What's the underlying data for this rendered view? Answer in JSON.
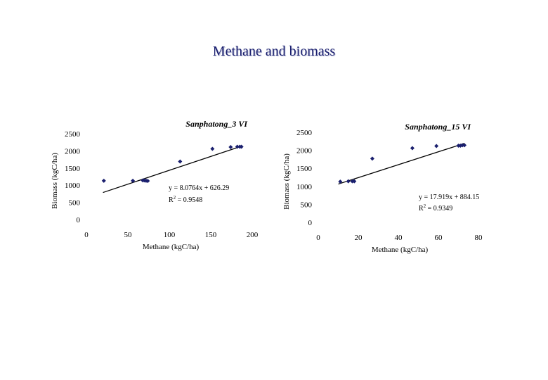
{
  "page": {
    "title": "Methane and biomass"
  },
  "colors": {
    "marker": "#1a1f6e",
    "text": "#000000",
    "title": "#1a1f6e"
  },
  "chart_data": [
    {
      "type": "scatter",
      "title": "Sanphatong_3 VI",
      "xlabel": "Methane (kgC/ha)",
      "ylabel": "Biomass (kgC/ha)",
      "xlim": [
        0,
        200
      ],
      "ylim": [
        0,
        2500
      ],
      "xticks": [
        0,
        50,
        100,
        150,
        200
      ],
      "yticks": [
        0,
        500,
        1000,
        1500,
        2000,
        2500
      ],
      "grid": false,
      "points": [
        {
          "x": 21,
          "y": 1130
        },
        {
          "x": 56,
          "y": 1130
        },
        {
          "x": 68,
          "y": 1140
        },
        {
          "x": 70,
          "y": 1140
        },
        {
          "x": 72,
          "y": 1130
        },
        {
          "x": 74,
          "y": 1125
        },
        {
          "x": 113,
          "y": 1690
        },
        {
          "x": 152,
          "y": 2060
        },
        {
          "x": 174,
          "y": 2110
        },
        {
          "x": 182,
          "y": 2120
        },
        {
          "x": 185,
          "y": 2120
        },
        {
          "x": 187,
          "y": 2120
        }
      ],
      "trendline": {
        "slope": 8.0764,
        "intercept": 626.29,
        "x_range": [
          20,
          188
        ]
      },
      "equation": "y = 8.0764x + 626.29",
      "r2_label": "R",
      "r2_value": " = 0.9548"
    },
    {
      "type": "scatter",
      "title": "Sanphatong_15 VI",
      "xlabel": "Methane (kgC/ha)",
      "ylabel": "Biomass (kgC/ha)",
      "xlim": [
        0,
        80
      ],
      "ylim": [
        0,
        2500
      ],
      "xticks": [
        0,
        20,
        40,
        60,
        80
      ],
      "yticks": [
        0,
        500,
        1000,
        1500,
        2000,
        2500
      ],
      "grid": false,
      "points": [
        {
          "x": 11,
          "y": 1130
        },
        {
          "x": 15,
          "y": 1140
        },
        {
          "x": 17,
          "y": 1140
        },
        {
          "x": 18,
          "y": 1140
        },
        {
          "x": 27,
          "y": 1770
        },
        {
          "x": 47,
          "y": 2060
        },
        {
          "x": 59,
          "y": 2120
        },
        {
          "x": 70,
          "y": 2130
        },
        {
          "x": 71,
          "y": 2130
        },
        {
          "x": 72,
          "y": 2140
        },
        {
          "x": 73,
          "y": 2140
        }
      ],
      "trendline": {
        "slope": 17.919,
        "intercept": 884.15,
        "x_range": [
          10,
          73
        ]
      },
      "equation": "y = 17.919x + 884.15",
      "r2_label": "R",
      "r2_value": " = 0.9349"
    }
  ]
}
